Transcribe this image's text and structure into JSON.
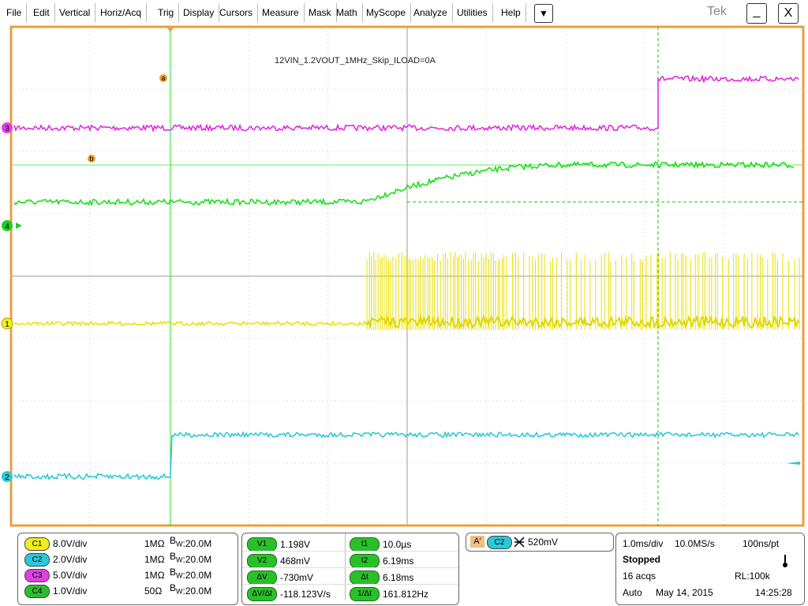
{
  "menu": [
    "File",
    "Edit",
    "Vertical",
    "Horiz/Acq",
    "Trig",
    "Display",
    "Cursors",
    "Measure",
    "Mask",
    "Math",
    "MyScope",
    "Analyze",
    "Utilities",
    "Help"
  ],
  "menu_dropdown": "▼",
  "logo": "Tek",
  "window_buttons": [
    "_",
    "X"
  ],
  "screen": {
    "label": "12VIN_1.2VOUT_1MHz_Skip_ILOAD=0A",
    "cursor_markers": [
      "a",
      "b"
    ],
    "channel_markers": [
      "3",
      "4",
      "1",
      "2"
    ]
  },
  "channels": [
    {
      "badge": "C1",
      "scale": "8.0V/div",
      "impedance": "1MΩ",
      "bw_letter": "B",
      "bw_sub": "W",
      "bw_value": ":20.0M"
    },
    {
      "badge": "C2",
      "scale": "2.0V/div",
      "impedance": "1MΩ",
      "bw_letter": "B",
      "bw_sub": "W",
      "bw_value": ":20.0M"
    },
    {
      "badge": "C3",
      "scale": "5.0V/div",
      "impedance": "1MΩ",
      "bw_letter": "B",
      "bw_sub": "W",
      "bw_value": ":20.0M"
    },
    {
      "badge": "C4",
      "scale": "1.0V/div",
      "impedance": "50Ω",
      "bw_letter": "B",
      "bw_sub": "W",
      "bw_value": ":20.0M"
    }
  ],
  "cursors": [
    [
      {
        "label": "V1",
        "value": "1.198V"
      },
      {
        "label": "t1",
        "value": "10.0µs"
      }
    ],
    [
      {
        "label": "V2",
        "value": "468mV"
      },
      {
        "label": "t2",
        "value": "6.19ms"
      }
    ],
    [
      {
        "label": "ΔV",
        "value": "-730mV"
      },
      {
        "label": "Δt",
        "value": "6.18ms"
      }
    ],
    [
      {
        "label": "ΔV/Δt",
        "value": "-118.123V/s"
      },
      {
        "label": "1/Δt",
        "value": "161.812Hz"
      }
    ]
  ],
  "trigger": {
    "source_tag": "A'",
    "channel": "C2",
    "level": "520mV"
  },
  "acquisition": {
    "time_div": "1.0ms/div",
    "sample_rate": "10.0MS/s",
    "resolution": "100ns/pt",
    "state": "Stopped",
    "acqs": "16 acqs",
    "record_length": "RL:100k",
    "mode": "Auto",
    "date": "May 14, 2015",
    "time": "14:25:28"
  }
}
